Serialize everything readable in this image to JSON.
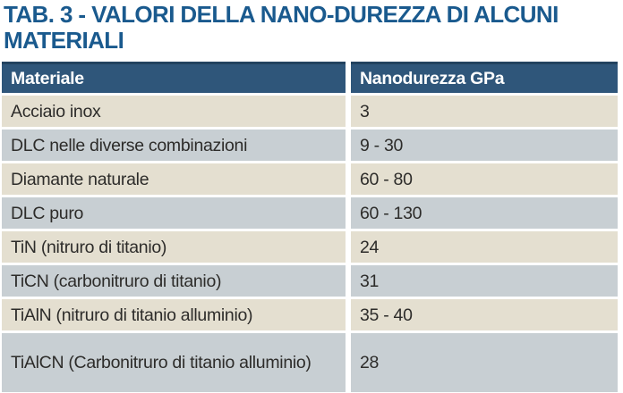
{
  "title": {
    "line1": "TAB. 3 - VALORI DELLA NANO-DUREZZA DI ALCUNI",
    "line2": "MATERIALI"
  },
  "table": {
    "columns": [
      "Materiale",
      "Nanodurezza GPa"
    ],
    "rows": [
      {
        "materiale": "Acciaio inox",
        "nanodurezza": "3"
      },
      {
        "materiale": "DLC nelle diverse combinazioni",
        "nanodurezza": "9 - 30"
      },
      {
        "materiale": "Diamante naturale",
        "nanodurezza": "60 - 80"
      },
      {
        "materiale": "DLC puro",
        "nanodurezza": "60 - 130"
      },
      {
        "materiale": "TiN (nitruro di titanio)",
        "nanodurezza": "24"
      },
      {
        "materiale": "TiCN (carbonitruro di titanio)",
        "nanodurezza": "31"
      },
      {
        "materiale": "TiAlN (nitruro di titanio alluminio)",
        "nanodurezza": "35 - 40"
      },
      {
        "materiale": "TiAlCN (Carbonitruro di titanio alluminio)",
        "nanodurezza": "28"
      }
    ]
  },
  "colors": {
    "title_blue": "#1a5a8e",
    "header_bg": "#2f567a",
    "header_text": "#ffffff",
    "row_beige": "#e4dfd0",
    "row_gray": "#c8cfd3",
    "body_text": "#2d2c2a"
  }
}
